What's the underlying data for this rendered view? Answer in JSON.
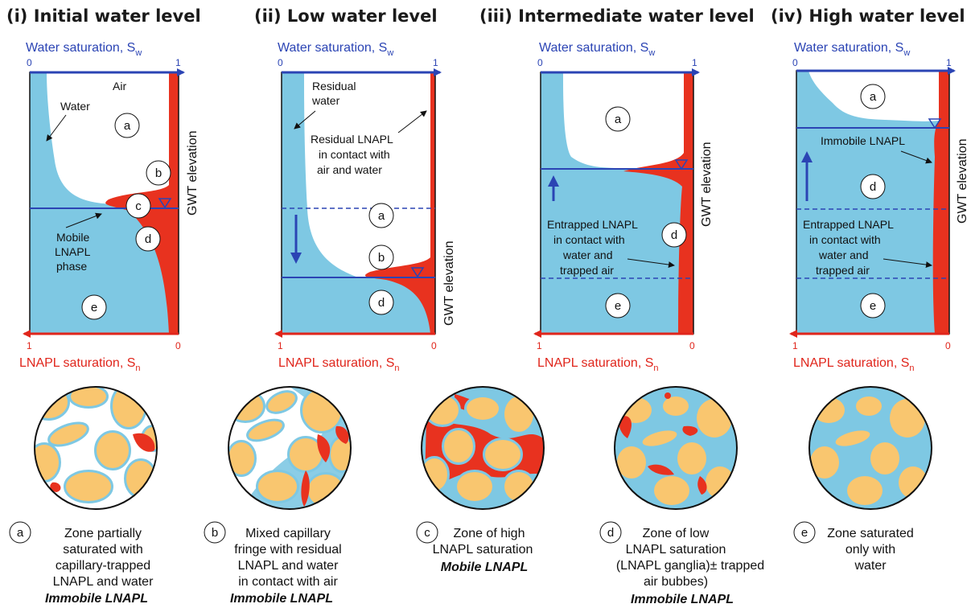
{
  "panels": [
    {
      "title": "(i)  Initial water level"
    },
    {
      "title": "(ii)  Low water level"
    },
    {
      "title": "(iii) Intermediate water level"
    },
    {
      "title": "(iv)  High water level"
    }
  ],
  "axes": {
    "top_label": "Water saturation, S",
    "top_sub": "w",
    "bottom_label": "LNAPL saturation, S",
    "bottom_sub": "n",
    "tick_0": "0",
    "tick_1": "1",
    "gwt": "GWT elevation"
  },
  "zone_letters": {
    "a": "a",
    "b": "b",
    "c": "c",
    "d": "d",
    "e": "e"
  },
  "panel_labels": {
    "p1_air": "Air",
    "p1_water": "Water",
    "p1_mobile": [
      "Mobile",
      "LNAPL",
      "phase"
    ],
    "p2_resid_water": [
      "Residual",
      "water"
    ],
    "p2_resid_lnapl": [
      "Residual LNAPL",
      "in contact with",
      "air and water"
    ],
    "p3_entrapped": [
      "Entrapped LNAPL",
      "in contact with",
      "water and",
      "trapped air"
    ],
    "p4_immobile": "Immobile LNAPL",
    "p4_entrapped": [
      "Entrapped LNAPL",
      "in contact with",
      "water and",
      "trapped air"
    ]
  },
  "captions": [
    {
      "letter": "a",
      "lines": [
        "Zone partially",
        "saturated with",
        "capillary-trapped",
        "LNAPL and water"
      ],
      "bold": "Immobile LNAPL"
    },
    {
      "letter": "b",
      "lines": [
        "Mixed capillary",
        "fringe with residual",
        "LNAPL and water",
        "in contact with air"
      ],
      "bold": "Immobile LNAPL"
    },
    {
      "letter": "c",
      "lines": [
        "Zone of high",
        "LNAPL saturation"
      ],
      "bold": "Mobile LNAPL"
    },
    {
      "letter": "d",
      "lines": [
        "Zone of low",
        "LNAPL saturation",
        "(LNAPL ganglia)± trapped",
        "air bubbes)"
      ],
      "bold": "Immobile LNAPL"
    },
    {
      "letter": "e",
      "lines": [
        "Zone saturated",
        "only with",
        "water"
      ],
      "bold": ""
    }
  ],
  "colors": {
    "water": "#7ec8e3",
    "lnapl": "#e8321f",
    "grain": "#f9c66f",
    "axis_top": "#2b44b4",
    "axis_bottom": "#e0251b"
  }
}
